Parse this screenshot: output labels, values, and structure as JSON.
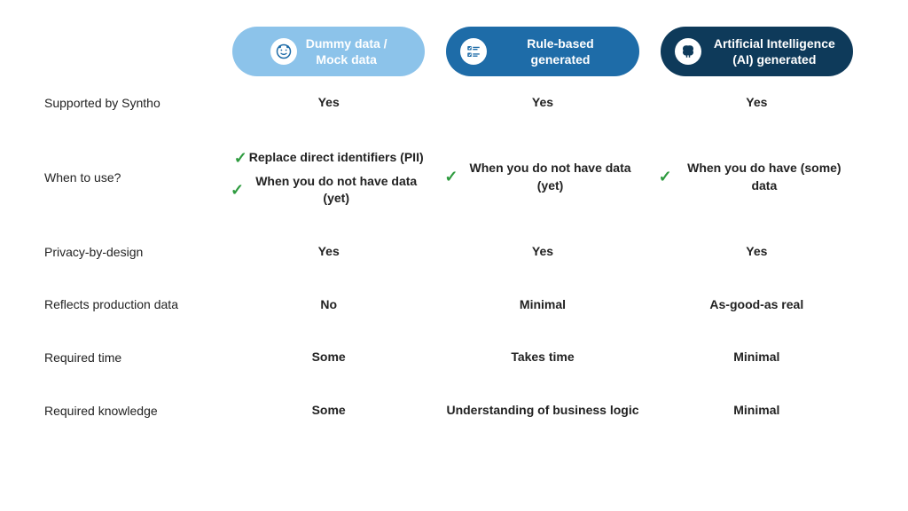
{
  "headers": [
    {
      "label": "Dummy data /\nMock data",
      "bg": "#8cc3ea",
      "icon": "face",
      "icon_color": "#1e6ca8"
    },
    {
      "label": "Rule-based generated",
      "bg": "#1e6ca8",
      "icon": "checklist",
      "icon_color": "#1e6ca8"
    },
    {
      "label": "Artificial Intelligence (AI) generated",
      "bg": "#0e3a5a",
      "icon": "brain",
      "icon_color": "#0e3a5a"
    }
  ],
  "rows": [
    {
      "label": "Supported by Syntho",
      "cells": [
        "Yes",
        "Yes",
        "Yes"
      ]
    },
    {
      "label": "When to use?",
      "cells_multi": [
        [
          "Replace direct identifiers (PII)",
          "When you do not have data (yet)"
        ],
        [
          "When you do not have data (yet)"
        ],
        [
          "When you do have (some) data"
        ]
      ]
    },
    {
      "label": "Privacy-by-design",
      "cells": [
        "Yes",
        "Yes",
        "Yes"
      ]
    },
    {
      "label": "Reflects production data",
      "cells": [
        "No",
        "Minimal",
        "As-good-as real"
      ]
    },
    {
      "label": "Required time",
      "cells": [
        "Some",
        "Takes time",
        "Minimal"
      ]
    },
    {
      "label": "Required knowledge",
      "cells": [
        "Some",
        "Understanding of business logic",
        "Minimal"
      ]
    }
  ],
  "check_color": "#2e9b3f"
}
